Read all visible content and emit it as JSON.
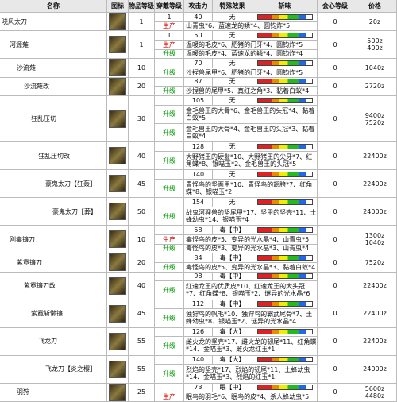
{
  "header": [
    "名称",
    "图标",
    "物品等级",
    "穿戴等级",
    "攻击力",
    "特殊效果",
    "斩味",
    "会心等级",
    "价格"
  ],
  "rows": [
    {
      "name": "晓风太刀",
      "indent": 0,
      "item_level": "1",
      "wear_level": "1",
      "attack": "40",
      "special": "无",
      "crit": "0",
      "price": [
        "20z"
      ],
      "materials": [
        {
          "type": "生产",
          "text": "山青虫*6、蓝速龙的鳞*4、圆钧炸*5"
        }
      ]
    },
    {
      "name": "河源薙",
      "indent": 1,
      "item_level": "1",
      "wear_level": "1",
      "attack": "50",
      "special": "无",
      "crit": "0",
      "price": [
        "500z",
        "400z"
      ],
      "materials": [
        {
          "type": "生产",
          "text": "温暖的毛皮*6、肥猪的门牙*4、圆钧炸*5"
        },
        {
          "type": "升级",
          "text": "温暖的毛皮*4、蓝速龙的鳞*4、圆钧炸*4"
        }
      ]
    },
    {
      "name": "沙流薙",
      "indent": 2,
      "item_level": "10",
      "attack": "70",
      "special": "无",
      "crit": "0",
      "price": [
        "1040z"
      ],
      "materials": [
        {
          "type": "升级",
          "text": "沙捏兽尾甲*6、肥猪的门牙*4、圆钧炸*5"
        }
      ]
    },
    {
      "name": "沙流薙改",
      "indent": 3,
      "item_level": "20",
      "attack": "87",
      "special": "无",
      "crit": "0",
      "price": [
        "2720z"
      ],
      "materials": [
        {
          "type": "升级",
          "text": "沙捏兽的尾甲*5、真红之角*3、黏着白蚁*4"
        }
      ]
    },
    {
      "name": "狂乱压切",
      "indent": 4,
      "item_level": "30",
      "attack": "105",
      "special": "无",
      "crit": "0",
      "price": [
        "9400z",
        "7520z"
      ],
      "materials": [
        {
          "type": "升级",
          "text": "金毛兽王的大骨*6、金毛兽王的头冠*4、黏着白蚁*5"
        },
        {
          "type": "升级",
          "text": "金毛兽王的大骨*4、金毛兽王的头冠*3、黏着白蚁*4"
        }
      ]
    },
    {
      "name": "狂乱压切改",
      "indent": 5,
      "item_level": "40",
      "attack": "128",
      "special": "无",
      "crit": "0",
      "price": [
        "22400z"
      ],
      "materials": [
        {
          "type": "升级",
          "text": "大野猪王的硬髮*10、大野猪王的尖牙*7、红角蝶*8、银喵玉*2、金毛兽王的头冠*5"
        }
      ]
    },
    {
      "name": "豪鬼太刀【狂轰】",
      "indent": 6,
      "item_level": "45",
      "attack": "140",
      "special": "无",
      "crit": "0",
      "price": [
        "22400z"
      ],
      "materials": [
        {
          "type": "升级",
          "text": "青怪鸟的坚面甲*10、青怪鸟的翅膀*7、红角蝶*8、银喵玉*2"
        }
      ]
    },
    {
      "name": "豪鬼太刀【葬】",
      "indent": 7,
      "item_level": "50",
      "attack": "154",
      "special": "无",
      "crit": "0",
      "price": [
        "24000z"
      ],
      "materials": [
        {
          "type": "升级",
          "text": "战鬼河狸兽的坚尾甲*17、坚甲的坚壳*11、土蜂幼虫*14、银喵玉*4"
        }
      ]
    },
    {
      "name": "刚毒镰刀",
      "indent": 1,
      "item_level": "10",
      "attack": "58",
      "special": "毒【中】",
      "crit": "0",
      "price": [
        "1300z",
        "1040z"
      ],
      "materials": [
        {
          "type": "生产",
          "text": "毒怪鸟的皮*5、变异的光水晶*4、山青虫*5"
        },
        {
          "type": "升级",
          "text": "毒怪鸟的皮*3、变异的光水晶*3、山青虫*4"
        }
      ]
    },
    {
      "name": "紫霓镰刀",
      "indent": 2,
      "item_level": "20",
      "attack": "84",
      "special": "毒【中】",
      "crit": "0",
      "price": [
        "7520z"
      ],
      "materials": [
        {
          "type": "升级",
          "text": "毒怪鸟的皮*5、变异的光水晶*3、黏着白蚁*4"
        }
      ]
    },
    {
      "name": "紫霓镰刀改",
      "indent": 3,
      "item_level": "40",
      "attack": "98",
      "special": "毒【中】",
      "crit": "0",
      "price": [
        "22400z"
      ],
      "materials": [
        {
          "type": "升级",
          "text": "红速龙王的优质皮*10、红速龙王的大头冠*7、红角蝶*8、银喵玉*2、谜异的光水晶*6"
        }
      ]
    },
    {
      "name": "紫霓斩懒镰",
      "indent": 4,
      "item_level": "45",
      "attack": "112",
      "special": "毒【中】",
      "crit": "0",
      "price": [
        "22400z"
      ],
      "materials": [
        {
          "type": "升级",
          "text": "独狩鸟的帆毛*10、独狩鸟的霸武尾骨*7、土蜂幼虫*8、银喵玉*2、谜异的光水晶*4"
        }
      ]
    },
    {
      "name": "飞龙刀",
      "indent": 5,
      "item_level": "55",
      "attack": "126",
      "special": "毒【大】",
      "crit": "0",
      "price": [
        "22400z"
      ],
      "materials": [
        {
          "type": "升级",
          "text": "雌火龙的坚壳*17、雌火龙的韧尾*11、红角蝶*14、金喵玉*3、雌火龙红玉*1"
        }
      ]
    },
    {
      "name": "飞龙刀【炎之樱】",
      "indent": 6,
      "item_level": "55",
      "attack": "140",
      "special": "毒【大】",
      "crit": "0",
      "price": [
        "24000z"
      ],
      "materials": [
        {
          "type": "升级",
          "text": "烈焰的坚壳*17、烈焰的韧尾*11、土蜂幼虫*14、金喵玉*3、烈焰的红玉*1"
        }
      ]
    },
    {
      "name": "羽狩",
      "indent": 2,
      "item_level": "25",
      "attack": "73",
      "special": "眠【中】",
      "crit": "0",
      "price": [
        "5600z",
        "4480z"
      ],
      "materials": [
        {
          "type": "生产",
          "text": "眠鸟的羽毛*6、眠鸟的皮*4、杀人蜂幼虫*5"
        }
      ]
    }
  ]
}
